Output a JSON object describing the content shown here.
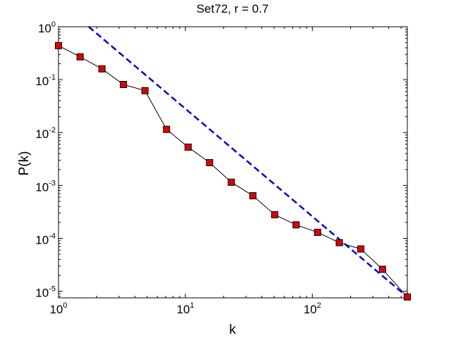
{
  "chart_data": {
    "type": "line",
    "title": "Set72, r = 0.7",
    "xlabel": "k",
    "ylabel": "P(k)",
    "xscale": "log",
    "yscale": "log",
    "xlim": [
      1,
      560
    ],
    "ylim": [
      7.5e-06,
      1
    ],
    "grid": false,
    "x_ticks": [
      {
        "value": 1,
        "base": "10",
        "exp": "0"
      },
      {
        "value": 10,
        "base": "10",
        "exp": "1"
      },
      {
        "value": 100,
        "base": "10",
        "exp": "2"
      }
    ],
    "y_ticks": [
      {
        "value": 1e-05,
        "base": "10",
        "exp": "-5"
      },
      {
        "value": 0.0001,
        "base": "10",
        "exp": "-4"
      },
      {
        "value": 0.001,
        "base": "10",
        "exp": "-3"
      },
      {
        "value": 0.01,
        "base": "10",
        "exp": "-2"
      },
      {
        "value": 0.1,
        "base": "10",
        "exp": "-1"
      },
      {
        "value": 1,
        "base": "10",
        "exp": "0"
      }
    ],
    "series": [
      {
        "style": "black line with red square markers",
        "color": "#000000",
        "marker_color": "#dd0000",
        "x": [
          1,
          1.48,
          2.2,
          3.25,
          4.8,
          7.1,
          10.5,
          15.5,
          23,
          34,
          50.5,
          74.5,
          110,
          163,
          241,
          357,
          560
        ],
        "y": [
          0.44,
          0.27,
          0.16,
          0.081,
          0.062,
          0.0115,
          0.0053,
          0.0027,
          0.00115,
          0.00064,
          0.00028,
          0.00018,
          0.00013,
          8.3e-05,
          6.3e-05,
          2.6e-05,
          7.8e-06
        ]
      },
      {
        "style": "dashed blue line",
        "color": "#0000dd",
        "x": [
          1.73,
          560
        ],
        "y": [
          1,
          7.8e-06
        ]
      }
    ]
  }
}
